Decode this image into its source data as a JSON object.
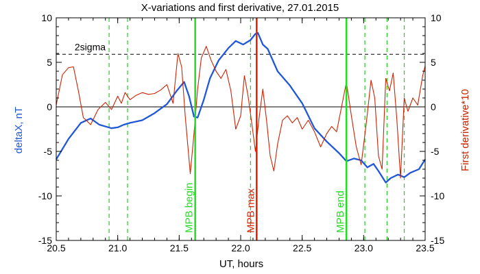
{
  "chart_data": {
    "type": "line",
    "title": "X-variations and first derivative, 27.01.2015",
    "xlabel": "UT, hours",
    "ylabel_left": "deltaX, nT",
    "ylabel_right": "First derivative*10",
    "xlim": [
      20.5,
      23.5
    ],
    "ylim": [
      -15,
      10
    ],
    "x_ticks": [
      "20.5",
      "21.0",
      "21.5",
      "22.0",
      "22.5",
      "23.0",
      "23.5"
    ],
    "y_ticks": [
      "10",
      "5",
      "0",
      "-5",
      "-10",
      "-15"
    ],
    "sigma_label": "2sigma",
    "sigma_level": 5.9,
    "zero_level": 0,
    "colors": {
      "deltaX": "#1f57d6",
      "derivative": "#cc2200",
      "mpb_edges": "#22dd22",
      "mpb_max": "#dd2200",
      "minor_markers": "#22cc22"
    },
    "markers": [
      {
        "label": "MPB begin",
        "x": 21.63,
        "kind": "begin"
      },
      {
        "label": "MPB max",
        "x": 22.13,
        "kind": "max"
      },
      {
        "label": "MPB end",
        "x": 22.86,
        "kind": "end"
      }
    ],
    "minor_markers_x": [
      20.93,
      21.08,
      22.08,
      23.01,
      23.19,
      23.33
    ],
    "series": [
      {
        "key": "deltaX",
        "name": "deltaX, nT",
        "x": [
          20.5,
          20.6,
          20.7,
          20.78,
          20.85,
          20.95,
          21.0,
          21.05,
          21.1,
          21.2,
          21.3,
          21.4,
          21.48,
          21.54,
          21.58,
          21.62,
          21.65,
          21.7,
          21.75,
          21.82,
          21.9,
          21.96,
          22.02,
          22.08,
          22.12,
          22.14,
          22.18,
          22.22,
          22.3,
          22.4,
          22.5,
          22.6,
          22.7,
          22.8,
          22.86,
          22.92,
          22.98,
          23.03,
          23.08,
          23.12,
          23.18,
          23.22,
          23.28,
          23.33,
          23.38,
          23.45,
          23.5
        ],
        "y": [
          -5.9,
          -3.6,
          -1.8,
          -1.3,
          -2.0,
          -2.4,
          -2.3,
          -2.0,
          -1.8,
          -1.5,
          -0.7,
          0.3,
          1.8,
          2.8,
          1.2,
          -1.1,
          -1.2,
          0.8,
          3.2,
          5.2,
          6.6,
          7.4,
          7.0,
          7.5,
          8.2,
          8.3,
          7.0,
          6.5,
          4.0,
          2.4,
          0.4,
          -2.4,
          -3.9,
          -5.2,
          -6.1,
          -5.8,
          -6.0,
          -6.8,
          -6.4,
          -7.2,
          -8.5,
          -8.0,
          -7.6,
          -7.9,
          -7.4,
          -7.0,
          -5.9
        ]
      },
      {
        "key": "derivative",
        "name": "First derivative*10",
        "x": [
          20.5,
          20.55,
          20.6,
          20.64,
          20.68,
          20.72,
          20.78,
          20.84,
          20.9,
          20.95,
          21.0,
          21.03,
          21.06,
          21.1,
          21.15,
          21.2,
          21.25,
          21.3,
          21.35,
          21.4,
          21.45,
          21.49,
          21.52,
          21.55,
          21.59,
          21.62,
          21.65,
          21.68,
          21.72,
          21.76,
          21.8,
          21.84,
          21.88,
          21.92,
          21.96,
          22.0,
          22.03,
          22.06,
          22.09,
          22.12,
          22.15,
          22.18,
          22.21,
          22.24,
          22.27,
          22.3,
          22.34,
          22.38,
          22.42,
          22.46,
          22.5,
          22.55,
          22.6,
          22.65,
          22.7,
          22.74,
          22.78,
          22.82,
          22.86,
          22.9,
          22.94,
          22.98,
          23.02,
          23.06,
          23.09,
          23.12,
          23.15,
          23.18,
          23.21,
          23.24,
          23.27,
          23.3,
          23.33,
          23.36,
          23.4,
          23.44,
          23.48,
          23.5
        ],
        "y": [
          0.2,
          3.6,
          4.4,
          4.5,
          1.8,
          -1.2,
          -2.0,
          -0.3,
          0.5,
          -0.3,
          1.2,
          0.4,
          1.6,
          0.8,
          1.3,
          1.6,
          1.4,
          1.5,
          1.9,
          2.5,
          0.4,
          6.0,
          4.5,
          -1.2,
          -7.5,
          -3.0,
          2.0,
          5.5,
          6.8,
          5.2,
          4.0,
          3.2,
          4.2,
          1.8,
          -2.5,
          -1.0,
          3.5,
          1.2,
          -1.8,
          -5.0,
          -1.2,
          2.0,
          -1.5,
          -5.5,
          -7.2,
          -4.2,
          -1.5,
          -1.0,
          -1.8,
          -1.2,
          -2.5,
          -1.5,
          -2.8,
          -4.5,
          -3.0,
          -2.2,
          -2.8,
          0.0,
          2.8,
          -1.0,
          -4.5,
          -6.5,
          -2.0,
          3.0,
          1.0,
          -5.5,
          -7.0,
          3.2,
          1.8,
          3.8,
          -1.5,
          -8.0,
          1.0,
          -0.5,
          1.0,
          0.2,
          3.5,
          4.6
        ]
      }
    ],
    "grid": false
  }
}
